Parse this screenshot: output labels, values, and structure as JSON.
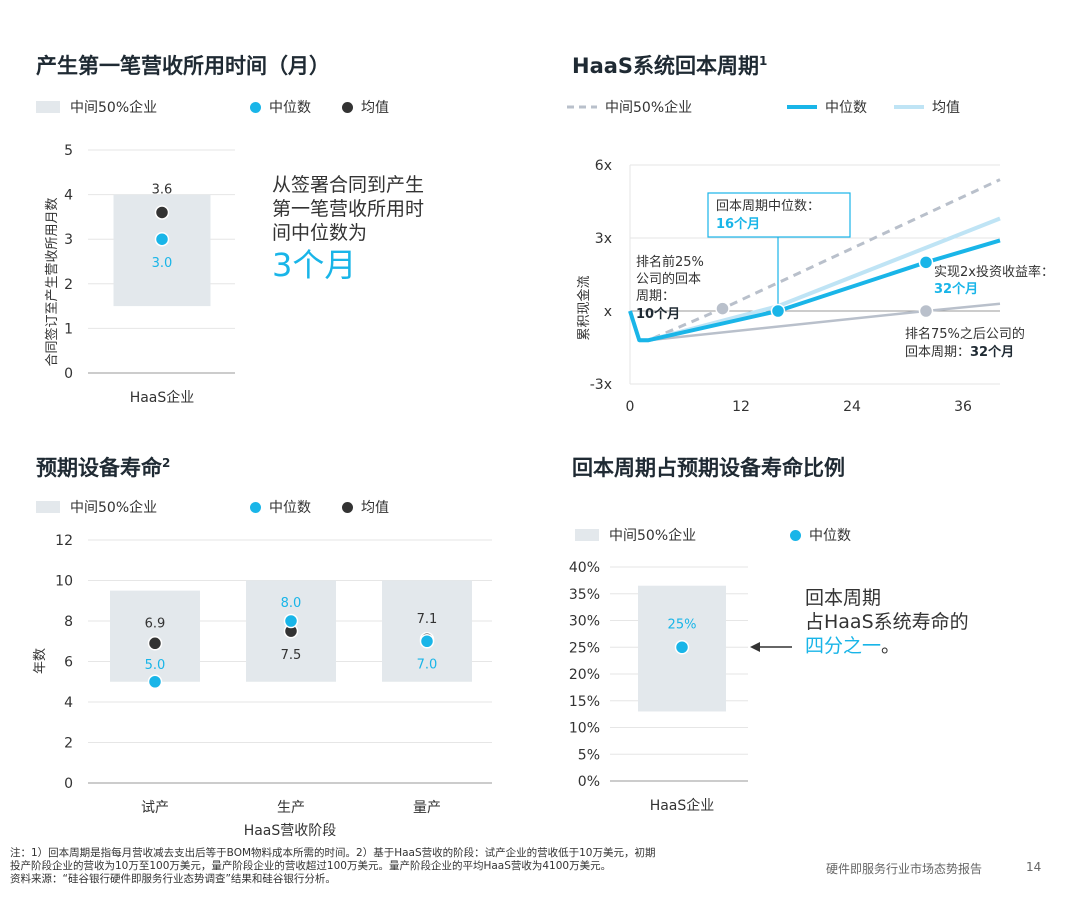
{
  "colors": {
    "range_box": "#e3e8ec",
    "median": "#19b5e8",
    "mean": "#333333",
    "axis": "#999999",
    "grid": "#e6e6e6",
    "accent_text": "#19b5e8",
    "payback_light": "#bfe4f5",
    "payback_dash": "#b9c0cb",
    "payback_low": "#b9c0cb"
  },
  "panel1": {
    "title": "产生第一笔营收所用时间（月）",
    "legend": {
      "range": "中间50%企业",
      "median": "中位数",
      "mean": "均值"
    },
    "callout_line1": "从签署合同到产生",
    "callout_line2": "第一笔营收所用时",
    "callout_line3": "间中位数为",
    "callout_big": "3个月"
  },
  "panel2": {
    "title": "HaaS系统回本周期",
    "title_sup": "1",
    "legend": {
      "range": "中间50%企业",
      "median": "中位数",
      "mean": "均值"
    },
    "annotations": {
      "median_box_line1": "回本周期中位数：",
      "median_box_line2": "16个月",
      "top25_line1": "排名前25%",
      "top25_line2": "公司的回本",
      "top25_line3": "周期：",
      "top25_line4": "10个月",
      "roi_line1": "实现2x投资收益率：",
      "roi_line2": "32个月",
      "bottom75_line1": "排名75%之后公司的",
      "bottom75_line2": "回本周期：",
      "bottom75_value": "32个月"
    }
  },
  "panel3": {
    "title": "预期设备寿命",
    "title_sup": "2",
    "legend": {
      "range": "中间50%企业",
      "median": "中位数",
      "mean": "均值"
    }
  },
  "panel4": {
    "title": "回本周期占预期设备寿命比例",
    "legend": {
      "range": "中间50%企业",
      "median": "中位数"
    },
    "callout_line1": "回本周期",
    "callout_line2": "占HaaS系统寿命的",
    "callout_accent": "四分之一",
    "callout_end": "。"
  },
  "footer": {
    "note_line1": "注：1）回本周期是指每月营收减去支出后等于BOM物料成本所需的时间。2）基于HaaS营收的阶段：试产企业的营收低于10万美元，初期",
    "note_line2": "投产阶段企业的营收为10万至100万美元，量产阶段企业的营收超过100万美元。量产阶段企业的平均HaaS营收为4100万美元。",
    "source": "资料来源：“硅谷银行硬件即服务行业态势调查”结果和硅谷银行分析。",
    "report_name": "硬件即服务行业市场态势报告",
    "page_number": "14"
  },
  "chart_data": [
    {
      "type": "range-dot",
      "ylabel": "合同签订至产生营收所用月数",
      "ylim": [
        0,
        5
      ],
      "yticks": [
        "0",
        "1",
        "2",
        "3",
        "4",
        "5"
      ],
      "categories": [
        "HaaS企业"
      ],
      "range": [
        [
          1.5,
          4.0
        ]
      ],
      "series": [
        {
          "name": "中位数",
          "values": [
            3.0
          ],
          "labels": [
            "3.0"
          ]
        },
        {
          "name": "均值",
          "values": [
            3.6
          ],
          "labels": [
            "3.6"
          ]
        }
      ]
    },
    {
      "type": "line",
      "ylabel": "累积现金流",
      "xlim": [
        0,
        40
      ],
      "ylim": [
        -3,
        6
      ],
      "xticks": [
        0,
        12,
        24,
        36
      ],
      "xtick_labels": [
        "0",
        "12",
        "24",
        "36"
      ],
      "yticks": [
        -3,
        0,
        3,
        6
      ],
      "ytick_labels": [
        "-3x",
        "x",
        "3x",
        "6x"
      ],
      "series": [
        {
          "name": "中间50%企业 (上)",
          "style": "dashed",
          "x": [
            1,
            2,
            10,
            40
          ],
          "y": [
            -1.2,
            -1.2,
            0.1,
            5.4
          ]
        },
        {
          "name": "中间50%企业 (下)",
          "style": "solid-light",
          "x": [
            1,
            2,
            32,
            40
          ],
          "y": [
            -1.2,
            -1.2,
            0.0,
            0.3
          ]
        },
        {
          "name": "均值",
          "style": "light",
          "x": [
            1,
            2,
            16,
            40
          ],
          "y": [
            -1.2,
            -1.2,
            0.2,
            3.8
          ]
        },
        {
          "name": "中位数",
          "style": "bold",
          "x": [
            0,
            1,
            2,
            16,
            32,
            40
          ],
          "y": [
            0,
            -1.2,
            -1.2,
            0.0,
            2.0,
            2.9
          ]
        }
      ],
      "markers": [
        {
          "x": 10,
          "y": 0.1,
          "color": "#b9c0cb"
        },
        {
          "x": 16,
          "y": 0.0,
          "color": "#19b5e8"
        },
        {
          "x": 32,
          "y": 2.0,
          "color": "#19b5e8"
        },
        {
          "x": 32,
          "y": 0.0,
          "color": "#b9c0cb"
        }
      ]
    },
    {
      "type": "range-dot",
      "ylabel": "年数",
      "xlabel": "HaaS营收阶段",
      "ylim": [
        0,
        12
      ],
      "yticks": [
        "0",
        "2",
        "4",
        "6",
        "8",
        "10",
        "12"
      ],
      "categories": [
        "试产",
        "生产",
        "量产"
      ],
      "range": [
        [
          5.0,
          9.5
        ],
        [
          5.0,
          10.0
        ],
        [
          5.0,
          10.0
        ]
      ],
      "series": [
        {
          "name": "中位数",
          "values": [
            5.0,
            8.0,
            7.0
          ],
          "labels": [
            "5.0",
            "8.0",
            "7.0"
          ]
        },
        {
          "name": "均值",
          "values": [
            6.9,
            7.5,
            7.1
          ],
          "labels": [
            "6.9",
            "7.5",
            "7.1"
          ]
        }
      ]
    },
    {
      "type": "range-dot",
      "ylim": [
        0,
        40
      ],
      "yticks": [
        "0%",
        "5%",
        "10%",
        "15%",
        "20%",
        "25%",
        "30%",
        "35%",
        "40%"
      ],
      "categories": [
        "HaaS企业"
      ],
      "range": [
        [
          13.0,
          36.5
        ]
      ],
      "series": [
        {
          "name": "中位数",
          "values": [
            25
          ],
          "labels": [
            "25%"
          ]
        }
      ]
    }
  ]
}
